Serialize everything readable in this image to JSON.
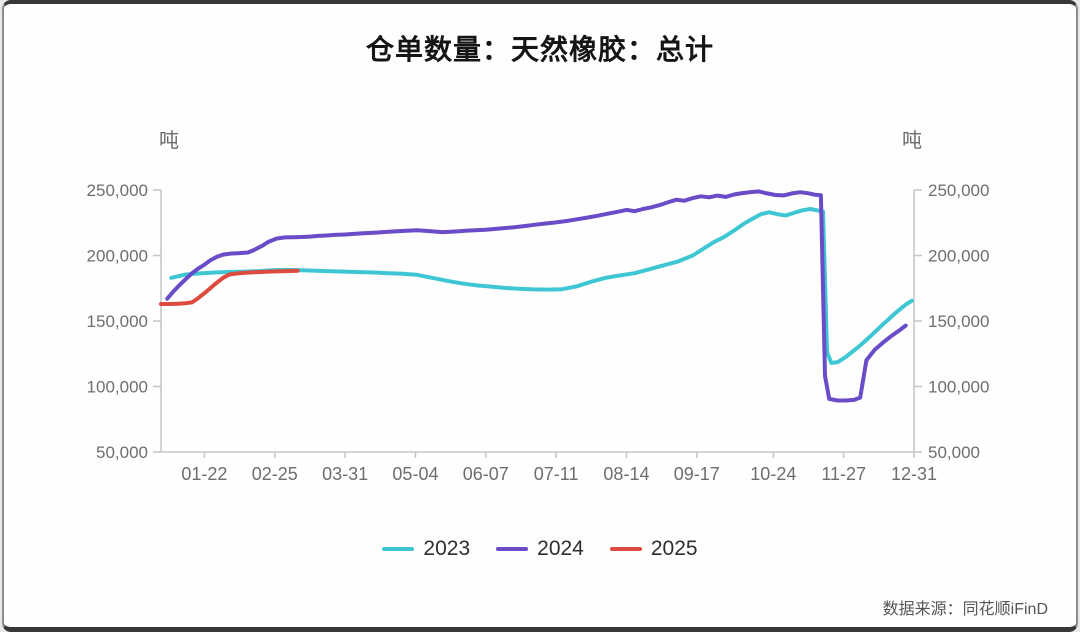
{
  "title": "仓单数量：天然橡胶：总计",
  "source_note": "数据来源：同花顺iFinD",
  "unit_left": "吨",
  "unit_right": "吨",
  "colors": {
    "series_2023": "#3ec7d3",
    "series_2024": "#6a4bc8",
    "series_2025": "#dd4b3e",
    "axis_line": "#c7c7c7",
    "tick_text": "#6e6e6e",
    "title_text": "#151515"
  },
  "legend": [
    {
      "label": "2023",
      "color": "#3ec7d3"
    },
    {
      "label": "2024",
      "color": "#6a4bc8"
    },
    {
      "label": "2025",
      "color": "#dd4b3e"
    }
  ],
  "chart_data": {
    "type": "line",
    "title": "仓单数量：天然橡胶：总计",
    "xlabel": "",
    "ylabel": "吨",
    "ylim": [
      50000,
      250000
    ],
    "xlim_days": [
      0,
      364
    ],
    "grid": false,
    "legend_position": "bottom",
    "yticks": [
      {
        "label": "250,000",
        "value": 250000
      },
      {
        "label": "200,000",
        "value": 200000
      },
      {
        "label": "150,000",
        "value": 150000
      },
      {
        "label": "100,000",
        "value": 100000
      },
      {
        "label": "50,000",
        "value": 50000
      }
    ],
    "xticks": [
      {
        "label": "01-22",
        "day": 21
      },
      {
        "label": "02-25",
        "day": 55
      },
      {
        "label": "03-31",
        "day": 89
      },
      {
        "label": "05-04",
        "day": 123
      },
      {
        "label": "06-07",
        "day": 157
      },
      {
        "label": "07-11",
        "day": 191
      },
      {
        "label": "08-14",
        "day": 225
      },
      {
        "label": "09-17",
        "day": 259
      },
      {
        "label": "10-24",
        "day": 296
      },
      {
        "label": "11-27",
        "day": 330
      },
      {
        "label": "12-31",
        "day": 364
      }
    ],
    "series": [
      {
        "name": "2023",
        "color": "#3ec7d3",
        "points": [
          [
            5,
            183000
          ],
          [
            12,
            185500
          ],
          [
            19,
            186300
          ],
          [
            26,
            187000
          ],
          [
            33,
            187400
          ],
          [
            40,
            187700
          ],
          [
            47,
            188100
          ],
          [
            54,
            188700
          ],
          [
            61,
            189000
          ],
          [
            68,
            188800
          ],
          [
            75,
            188300
          ],
          [
            82,
            188000
          ],
          [
            89,
            187700
          ],
          [
            96,
            187300
          ],
          [
            103,
            187000
          ],
          [
            110,
            186500
          ],
          [
            117,
            186000
          ],
          [
            124,
            185200
          ],
          [
            131,
            183000
          ],
          [
            138,
            180800
          ],
          [
            145,
            178800
          ],
          [
            152,
            177300
          ],
          [
            159,
            176300
          ],
          [
            166,
            175300
          ],
          [
            173,
            174600
          ],
          [
            180,
            174100
          ],
          [
            187,
            174000
          ],
          [
            194,
            174300
          ],
          [
            201,
            176500
          ],
          [
            208,
            180000
          ],
          [
            215,
            183000
          ],
          [
            222,
            184800
          ],
          [
            229,
            186500
          ],
          [
            236,
            189500
          ],
          [
            243,
            192500
          ],
          [
            250,
            195500
          ],
          [
            257,
            200000
          ],
          [
            262,
            205000
          ],
          [
            267,
            210000
          ],
          [
            272,
            214000
          ],
          [
            277,
            219000
          ],
          [
            282,
            224500
          ],
          [
            286,
            228000
          ],
          [
            290,
            231500
          ],
          [
            294,
            233000
          ],
          [
            298,
            231500
          ],
          [
            302,
            230500
          ],
          [
            306,
            232500
          ],
          [
            310,
            234500
          ],
          [
            314,
            235500
          ],
          [
            318,
            234200
          ],
          [
            320,
            233500
          ],
          [
            322,
            126000
          ],
          [
            324,
            118000
          ],
          [
            327,
            118500
          ],
          [
            331,
            122500
          ],
          [
            337,
            130000
          ],
          [
            343,
            138500
          ],
          [
            349,
            147500
          ],
          [
            355,
            156000
          ],
          [
            360,
            162500
          ],
          [
            363,
            165500
          ]
        ]
      },
      {
        "name": "2024",
        "color": "#6a4bc8",
        "points": [
          [
            3,
            167000
          ],
          [
            6,
            172500
          ],
          [
            9,
            177500
          ],
          [
            12,
            182000
          ],
          [
            15,
            186500
          ],
          [
            18,
            190000
          ],
          [
            21,
            193000
          ],
          [
            24,
            196500
          ],
          [
            27,
            199000
          ],
          [
            30,
            200700
          ],
          [
            34,
            201500
          ],
          [
            38,
            201800
          ],
          [
            42,
            202300
          ],
          [
            45,
            204200
          ],
          [
            49,
            207500
          ],
          [
            52,
            210500
          ],
          [
            56,
            213000
          ],
          [
            60,
            213800
          ],
          [
            64,
            214000
          ],
          [
            68,
            214100
          ],
          [
            72,
            214400
          ],
          [
            76,
            215000
          ],
          [
            80,
            215300
          ],
          [
            84,
            215700
          ],
          [
            89,
            216000
          ],
          [
            94,
            216600
          ],
          [
            99,
            217100
          ],
          [
            104,
            217500
          ],
          [
            110,
            218100
          ],
          [
            115,
            218600
          ],
          [
            120,
            219000
          ],
          [
            124,
            219200
          ],
          [
            128,
            218800
          ],
          [
            132,
            218300
          ],
          [
            136,
            217900
          ],
          [
            140,
            218100
          ],
          [
            144,
            218500
          ],
          [
            148,
            219000
          ],
          [
            152,
            219300
          ],
          [
            157,
            219700
          ],
          [
            161,
            220200
          ],
          [
            166,
            220900
          ],
          [
            171,
            221600
          ],
          [
            176,
            222500
          ],
          [
            181,
            223500
          ],
          [
            186,
            224400
          ],
          [
            191,
            225300
          ],
          [
            196,
            226300
          ],
          [
            201,
            227600
          ],
          [
            206,
            228900
          ],
          [
            211,
            230300
          ],
          [
            216,
            231900
          ],
          [
            221,
            233400
          ],
          [
            225,
            234800
          ],
          [
            229,
            233800
          ],
          [
            233,
            235500
          ],
          [
            237,
            236800
          ],
          [
            241,
            238500
          ],
          [
            245,
            240500
          ],
          [
            249,
            242500
          ],
          [
            253,
            241800
          ],
          [
            257,
            243800
          ],
          [
            261,
            245200
          ],
          [
            265,
            244400
          ],
          [
            269,
            245700
          ],
          [
            273,
            244700
          ],
          [
            277,
            246600
          ],
          [
            281,
            247600
          ],
          [
            285,
            248400
          ],
          [
            289,
            248900
          ],
          [
            293,
            247400
          ],
          [
            297,
            246200
          ],
          [
            301,
            245900
          ],
          [
            305,
            247400
          ],
          [
            309,
            248300
          ],
          [
            313,
            247500
          ],
          [
            316,
            246400
          ],
          [
            319,
            246000
          ],
          [
            321,
            108000
          ],
          [
            323,
            90500
          ],
          [
            327,
            89300
          ],
          [
            331,
            89300
          ],
          [
            335,
            89800
          ],
          [
            338,
            91500
          ],
          [
            341,
            120000
          ],
          [
            345,
            128000
          ],
          [
            349,
            133500
          ],
          [
            353,
            138500
          ],
          [
            357,
            143000
          ],
          [
            360,
            146500
          ]
        ]
      },
      {
        "name": "2025",
        "color": "#dd4b3e",
        "points": [
          [
            0,
            163000
          ],
          [
            4,
            163000
          ],
          [
            8,
            163200
          ],
          [
            12,
            163600
          ],
          [
            15,
            164200
          ],
          [
            18,
            167500
          ],
          [
            22,
            172500
          ],
          [
            26,
            178000
          ],
          [
            30,
            183000
          ],
          [
            33,
            185500
          ],
          [
            36,
            186200
          ],
          [
            40,
            186700
          ],
          [
            44,
            187100
          ],
          [
            48,
            187400
          ],
          [
            52,
            187700
          ],
          [
            56,
            187900
          ],
          [
            60,
            188100
          ],
          [
            63,
            188200
          ],
          [
            66,
            188300
          ]
        ]
      }
    ]
  }
}
